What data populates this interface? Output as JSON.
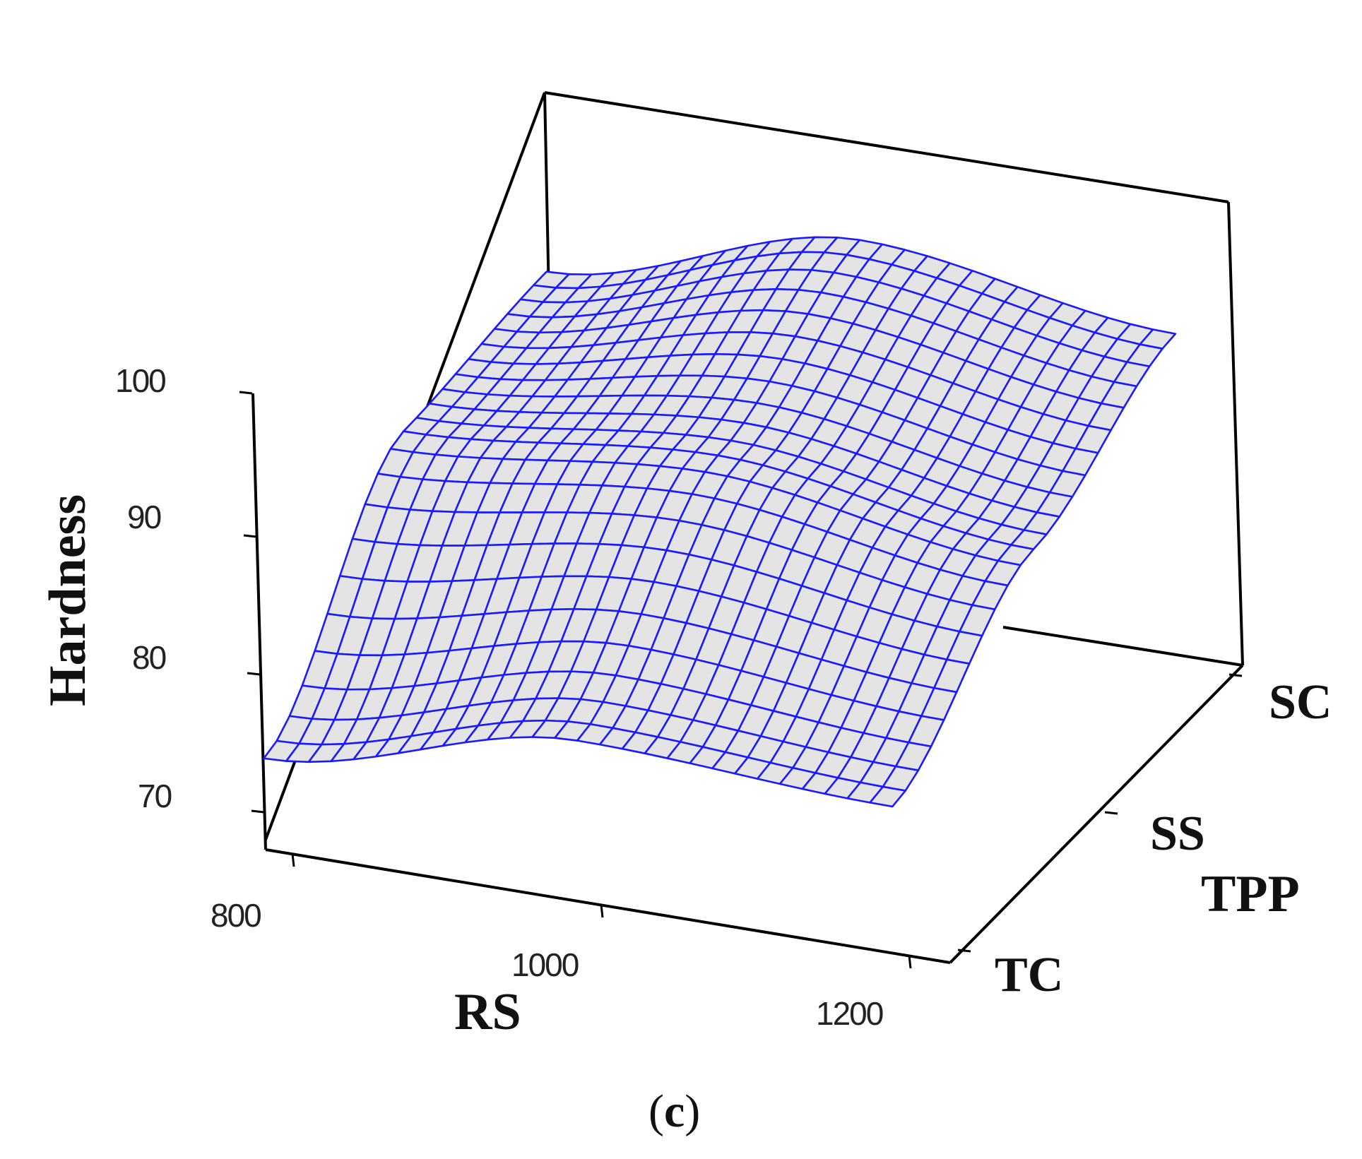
{
  "chart_data": {
    "type": "surface",
    "zlabel": "Hardness",
    "xlabel": "RS",
    "ylabel": "TPP",
    "x_ticks": [
      800,
      1000,
      1200
    ],
    "x_range": [
      800,
      1250
    ],
    "y_categories": [
      "TC",
      "SS",
      "SC"
    ],
    "z_ticks": [
      70,
      80,
      90,
      100
    ],
    "z_range": [
      68,
      100
    ],
    "caption": "(c)",
    "surface_color": "#e4e4e4",
    "mesh_color": "#1a1aff",
    "surface_samples": {
      "x": [
        800,
        1000,
        1200
      ],
      "y": [
        "TC",
        "SS",
        "SC"
      ],
      "z": [
        [
          73,
          78,
          77
        ],
        [
          86,
          88,
          85
        ],
        [
          87,
          93,
          90
        ]
      ]
    }
  },
  "labels": {
    "z_ticks": [
      "70",
      "80",
      "90",
      "100"
    ],
    "x_ticks": [
      "800",
      "1000",
      "1200"
    ],
    "y_cats": [
      "TC",
      "SS",
      "SC"
    ],
    "zlabel": "Hardness",
    "xlabel": "RS",
    "ylabel": "TPP",
    "caption_open": "(",
    "caption_letter": "c",
    "caption_close": ")"
  }
}
